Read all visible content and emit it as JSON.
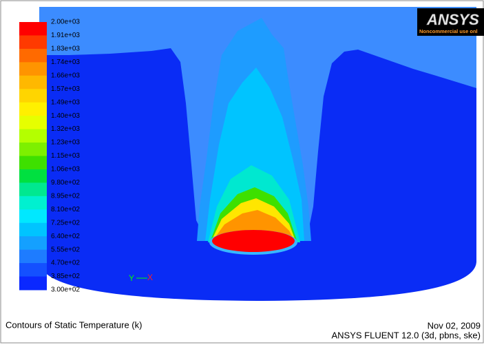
{
  "legend": {
    "labels": [
      "2.00e+03",
      "1.91e+03",
      "1.83e+03",
      "1.74e+03",
      "1.66e+03",
      "1.57e+03",
      "1.49e+03",
      "1.40e+03",
      "1.32e+03",
      "1.23e+03",
      "1.15e+03",
      "1.06e+03",
      "9.80e+02",
      "8.95e+02",
      "8.10e+02",
      "7.25e+02",
      "6.40e+02",
      "5.55e+02",
      "4.70e+02",
      "3.85e+02",
      "3.00e+02"
    ],
    "colors": [
      "#ff0000",
      "#ff3a00",
      "#ff6a00",
      "#ff9400",
      "#ffb800",
      "#ffd500",
      "#fff000",
      "#e6ff00",
      "#b4ff00",
      "#7df000",
      "#3ee000",
      "#00e040",
      "#00e890",
      "#00f0d0",
      "#00e8ff",
      "#00c4ff",
      "#14a0ff",
      "#1e7cff",
      "#1450ff",
      "#0a28ff"
    ]
  },
  "axes": {
    "y": "Y",
    "x": "X"
  },
  "logo": {
    "name": "ANSYS",
    "note": "Noncommercial use onl"
  },
  "footer": {
    "title": "Contours of Static Temperature (k)",
    "date": "Nov 02, 2009",
    "software": "ANSYS FLUENT 12.0 (3d, pbns, ske)"
  }
}
